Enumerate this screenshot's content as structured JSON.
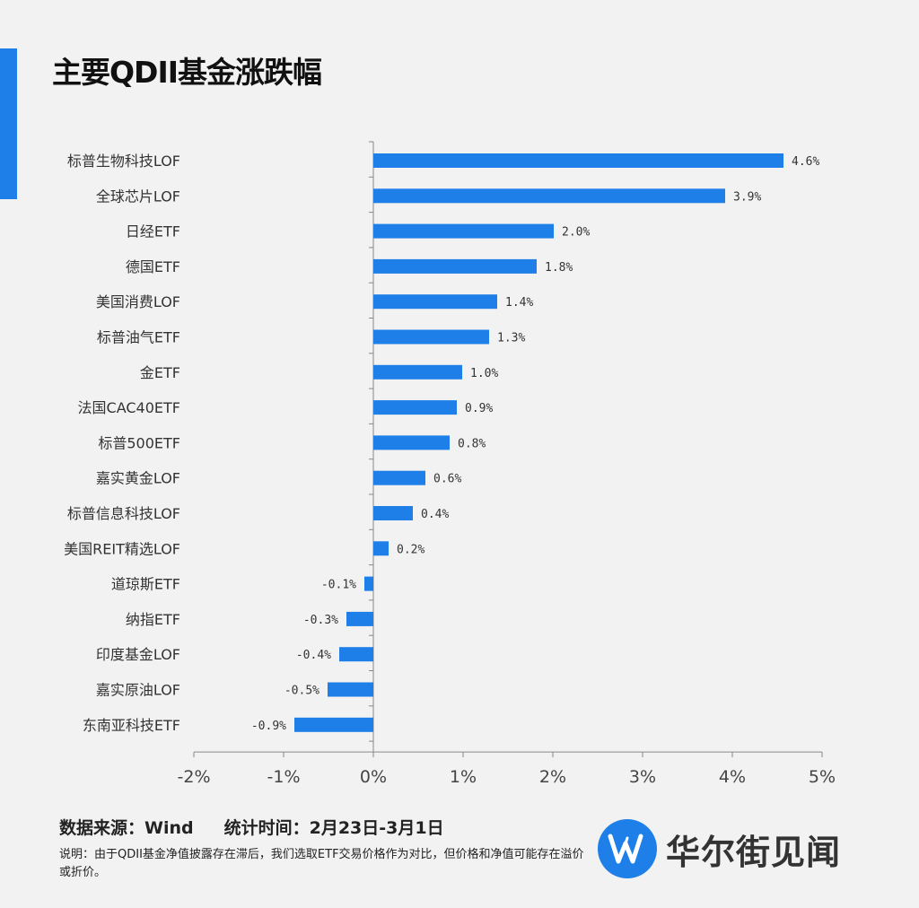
{
  "title": "主要QDII基金涨跌幅",
  "source": {
    "data_source": "数据来源：Wind",
    "period": "统计时间：2月23日-3月1日",
    "note": "说明：由于QDII基金净值披露存在滞后，我们选取ETF交易价格作为对比，但价格和净值可能存在溢价或折价。"
  },
  "brand": {
    "name": "华尔街见闻",
    "color": "#1e7fe8"
  },
  "colors": {
    "bar": "#1e7fe8",
    "accent": "#1e7fe8",
    "axis": "#888888"
  },
  "chart_data": {
    "type": "bar",
    "orientation": "horizontal",
    "title": "主要QDII基金涨跌幅",
    "xlabel": "",
    "ylabel": "",
    "xlim": [
      -2,
      5
    ],
    "ticks": [
      -2,
      -1,
      0,
      1,
      2,
      3,
      4,
      5
    ],
    "tick_labels": [
      "-2%",
      "-1%",
      "0%",
      "1%",
      "2%",
      "3%",
      "4%",
      "5%"
    ],
    "categories": [
      "标普生物科技LOF",
      "全球芯片LOF",
      "日经ETF",
      "德国ETF",
      "美国消费LOF",
      "标普油气ETF",
      "金ETF",
      "法国CAC40ETF",
      "标普500ETF",
      "嘉实黄金LOF",
      "标普信息科技LOF",
      "美国REIT精选LOF",
      "道琼斯ETF",
      "纳指ETF",
      "印度基金LOF",
      "嘉实原油LOF",
      "东南亚科技ETF"
    ],
    "values": [
      4.57,
      3.92,
      2.01,
      1.82,
      1.38,
      1.29,
      0.99,
      0.93,
      0.85,
      0.58,
      0.44,
      0.17,
      -0.1,
      -0.3,
      -0.38,
      -0.51,
      -0.88
    ],
    "value_labels": [
      "4.6%",
      "3.9%",
      "2.0%",
      "1.8%",
      "1.4%",
      "1.3%",
      "1.0%",
      "0.9%",
      "0.8%",
      "0.6%",
      "0.4%",
      "0.2%",
      "-0.1%",
      "-0.3%",
      "-0.4%",
      "-0.5%",
      "-0.9%"
    ],
    "grid": false
  }
}
